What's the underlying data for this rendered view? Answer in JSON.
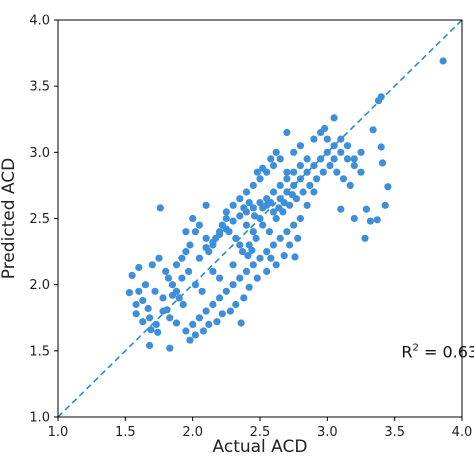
{
  "chart_data": {
    "type": "scatter",
    "xlabel": "Actual ACD",
    "ylabel": "Predicted ACD",
    "xlim": [
      1.0,
      4.0
    ],
    "ylim": [
      1.0,
      4.0
    ],
    "xticks": [
      "1.0",
      "1.5",
      "2.0",
      "2.5",
      "3.0",
      "3.5",
      "4.0"
    ],
    "yticks": [
      "1.0",
      "1.5",
      "2.0",
      "2.5",
      "3.0",
      "3.5",
      "4.0"
    ],
    "grid": false,
    "reference_line": {
      "type": "identity",
      "style": "dashed",
      "color": "#2b8cc4"
    },
    "point_color": "#3d8fdc",
    "annotation": {
      "prefix": "R",
      "sup": "2",
      "suffix": " = 0.63"
    },
    "points": [
      [
        3.86,
        3.69
      ],
      [
        3.38,
        3.39
      ],
      [
        3.4,
        3.42
      ],
      [
        3.34,
        3.17
      ],
      [
        3.4,
        3.04
      ],
      [
        3.41,
        2.92
      ],
      [
        3.45,
        2.74
      ],
      [
        3.43,
        2.6
      ],
      [
        3.37,
        2.49
      ],
      [
        3.29,
        2.57
      ],
      [
        3.32,
        2.48
      ],
      [
        3.28,
        2.35
      ],
      [
        3.2,
        2.5
      ],
      [
        3.1,
        2.57
      ],
      [
        3.05,
        3.26
      ],
      [
        2.98,
        3.18
      ],
      [
        2.7,
        3.15
      ],
      [
        2.76,
        2.21
      ],
      [
        2.58,
        2.2
      ],
      [
        2.41,
        2.22
      ],
      [
        2.44,
        2.26
      ],
      [
        2.36,
        1.71
      ],
      [
        1.83,
        1.52
      ],
      [
        1.88,
        1.71
      ],
      [
        1.76,
        2.58
      ],
      [
        1.6,
        2.13
      ],
      [
        1.55,
        2.07
      ],
      [
        1.53,
        1.94
      ],
      [
        1.63,
        1.88
      ],
      [
        1.67,
        1.82
      ],
      [
        1.69,
        1.66
      ],
      [
        1.68,
        1.54
      ],
      [
        1.74,
        1.64
      ],
      [
        1.81,
        1.81
      ],
      [
        1.85,
        1.92
      ],
      [
        1.92,
        2.05
      ],
      [
        1.98,
        2.3
      ],
      [
        2.02,
        2.4
      ],
      [
        2.1,
        2.6
      ],
      [
        2.25,
        2.55
      ],
      [
        1.95,
        2.25
      ],
      [
        2.05,
        2.2
      ],
      [
        2.15,
        2.1
      ],
      [
        2.2,
        2.05
      ],
      [
        2.3,
        2.15
      ],
      [
        2.35,
        2.3
      ],
      [
        2.4,
        2.45
      ],
      [
        2.45,
        2.4
      ],
      [
        2.5,
        2.5
      ],
      [
        2.55,
        2.6
      ],
      [
        2.6,
        2.55
      ],
      [
        2.65,
        2.65
      ],
      [
        2.7,
        2.7
      ],
      [
        2.75,
        2.75
      ],
      [
        2.8,
        2.8
      ],
      [
        2.85,
        2.85
      ],
      [
        2.9,
        2.9
      ],
      [
        2.95,
        2.95
      ],
      [
        3.0,
        3.0
      ],
      [
        3.05,
        3.05
      ],
      [
        3.1,
        3.0
      ],
      [
        3.15,
        2.95
      ],
      [
        3.2,
        2.9
      ],
      [
        3.25,
        2.85
      ],
      [
        2.9,
        2.7
      ],
      [
        2.85,
        2.6
      ],
      [
        2.8,
        2.5
      ],
      [
        2.75,
        2.45
      ],
      [
        2.7,
        2.4
      ],
      [
        2.65,
        2.35
      ],
      [
        2.6,
        2.3
      ],
      [
        2.55,
        2.25
      ],
      [
        2.5,
        2.2
      ],
      [
        2.45,
        2.15
      ],
      [
        2.4,
        2.1
      ],
      [
        2.35,
        2.05
      ],
      [
        2.3,
        2.0
      ],
      [
        2.25,
        1.95
      ],
      [
        2.2,
        1.9
      ],
      [
        2.15,
        1.85
      ],
      [
        2.1,
        1.8
      ],
      [
        2.05,
        1.75
      ],
      [
        2.0,
        1.7
      ],
      [
        1.95,
        1.65
      ],
      [
        1.9,
        1.9
      ],
      [
        1.85,
        2.0
      ],
      [
        1.8,
        2.1
      ],
      [
        1.75,
        2.2
      ],
      [
        1.7,
        2.15
      ],
      [
        1.65,
        2.0
      ],
      [
        1.6,
        1.95
      ],
      [
        1.58,
        1.85
      ],
      [
        1.72,
        1.95
      ],
      [
        1.78,
        1.9
      ],
      [
        1.82,
        2.05
      ],
      [
        1.88,
        2.15
      ],
      [
        1.92,
        2.2
      ],
      [
        1.97,
        2.1
      ],
      [
        2.02,
        2.0
      ],
      [
        2.07,
        1.95
      ],
      [
        2.12,
        2.25
      ],
      [
        2.17,
        2.35
      ],
      [
        2.22,
        2.45
      ],
      [
        2.27,
        2.4
      ],
      [
        2.32,
        2.35
      ],
      [
        2.37,
        2.25
      ],
      [
        2.42,
        2.3
      ],
      [
        2.47,
        2.35
      ],
      [
        2.52,
        2.45
      ],
      [
        2.57,
        2.4
      ],
      [
        2.62,
        2.5
      ],
      [
        2.67,
        2.55
      ],
      [
        2.72,
        2.6
      ],
      [
        2.77,
        2.65
      ],
      [
        2.82,
        2.7
      ],
      [
        2.87,
        2.75
      ],
      [
        2.92,
        2.8
      ],
      [
        2.97,
        2.85
      ],
      [
        3.02,
        2.9
      ],
      [
        3.07,
        2.85
      ],
      [
        3.12,
        2.8
      ],
      [
        3.17,
        2.75
      ],
      [
        2.6,
        2.9
      ],
      [
        2.55,
        2.85
      ],
      [
        2.5,
        2.8
      ],
      [
        2.45,
        2.75
      ],
      [
        2.4,
        2.7
      ],
      [
        2.35,
        2.65
      ],
      [
        2.3,
        2.6
      ],
      [
        2.25,
        2.5
      ],
      [
        2.2,
        2.4
      ],
      [
        2.15,
        2.3
      ],
      [
        2.1,
        2.35
      ],
      [
        2.05,
        2.45
      ],
      [
        2.0,
        2.5
      ],
      [
        1.95,
        2.4
      ],
      [
        2.65,
        2.95
      ],
      [
        2.7,
        2.85
      ],
      [
        2.75,
        3.0
      ],
      [
        2.8,
        3.05
      ],
      [
        2.62,
        3.0
      ],
      [
        2.58,
        2.95
      ],
      [
        2.52,
        2.88
      ],
      [
        2.48,
        2.85
      ],
      [
        2.68,
        2.22
      ],
      [
        2.72,
        2.3
      ],
      [
        2.78,
        2.35
      ],
      [
        2.62,
        2.15
      ],
      [
        2.55,
        2.1
      ],
      [
        2.48,
        2.05
      ],
      [
        2.42,
        1.98
      ],
      [
        2.38,
        1.9
      ],
      [
        2.32,
        1.85
      ],
      [
        2.28,
        1.8
      ],
      [
        2.22,
        1.78
      ],
      [
        2.18,
        1.72
      ],
      [
        2.12,
        1.7
      ],
      [
        2.08,
        1.65
      ],
      [
        2.02,
        1.62
      ],
      [
        1.98,
        1.58
      ],
      [
        1.93,
        1.85
      ],
      [
        1.88,
        1.95
      ],
      [
        1.83,
        1.75
      ],
      [
        1.78,
        1.8
      ],
      [
        1.73,
        1.7
      ],
      [
        1.68,
        1.75
      ],
      [
        1.63,
        1.72
      ],
      [
        1.58,
        1.78
      ],
      [
        2.9,
        3.1
      ],
      [
        2.95,
        3.15
      ],
      [
        3.0,
        3.1
      ],
      [
        3.05,
        2.95
      ],
      [
        3.1,
        3.1
      ],
      [
        3.15,
        3.05
      ],
      [
        3.2,
        2.95
      ],
      [
        3.25,
        3.0
      ],
      [
        2.85,
        2.95
      ],
      [
        2.8,
        2.9
      ],
      [
        2.75,
        2.85
      ],
      [
        2.7,
        2.8
      ],
      [
        2.65,
        2.75
      ],
      [
        2.6,
        2.7
      ],
      [
        2.55,
        2.65
      ],
      [
        2.5,
        2.62
      ],
      [
        2.45,
        2.58
      ],
      [
        2.4,
        2.55
      ],
      [
        2.35,
        2.52
      ],
      [
        2.3,
        2.48
      ],
      [
        2.25,
        2.42
      ],
      [
        2.2,
        2.38
      ],
      [
        2.15,
        2.32
      ],
      [
        2.1,
        2.28
      ],
      [
        2.38,
        2.58
      ],
      [
        2.42,
        2.62
      ],
      [
        2.46,
        2.52
      ],
      [
        2.52,
        2.58
      ],
      [
        2.58,
        2.62
      ],
      [
        2.64,
        2.58
      ],
      [
        2.68,
        2.62
      ],
      [
        2.74,
        2.68
      ]
    ]
  }
}
